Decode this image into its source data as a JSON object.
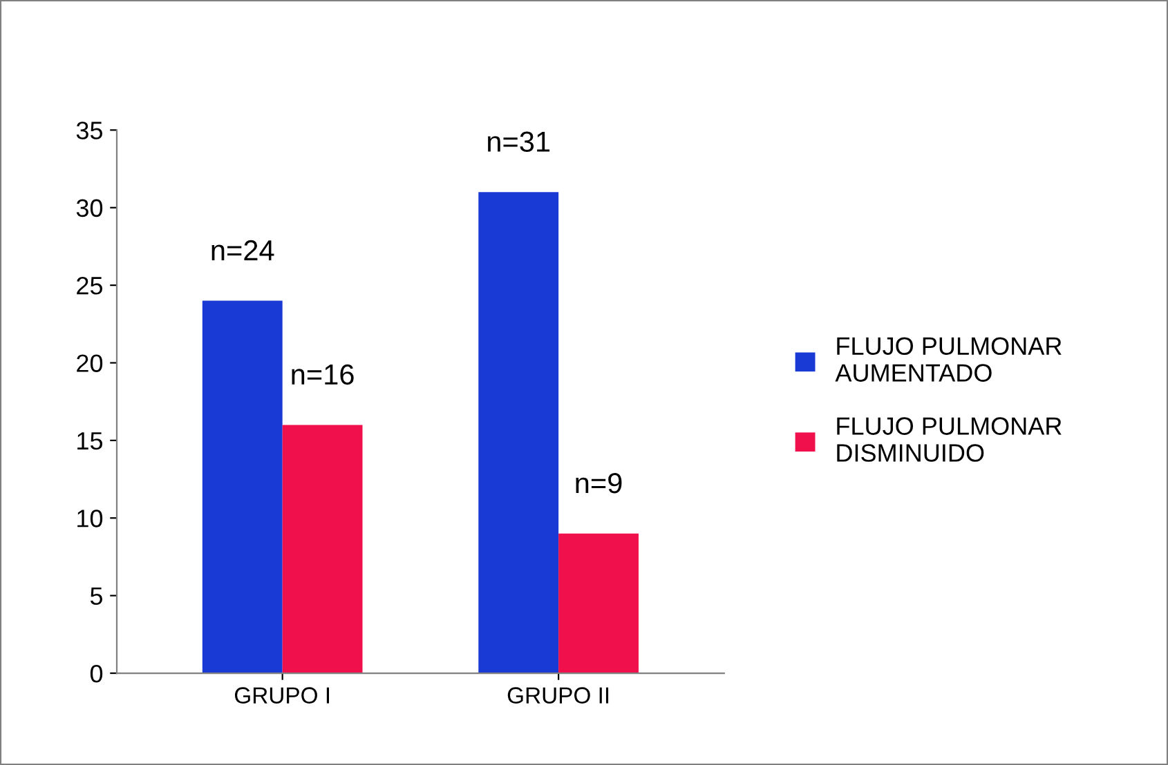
{
  "chart_data": {
    "type": "bar",
    "categories": [
      "GRUPO I",
      "GRUPO II"
    ],
    "series": [
      {
        "name": "FLUJO PULMONAR\nAUMENTADO",
        "color": "#1a3ad6",
        "values": [
          24,
          31
        ],
        "value_labels": [
          "n=24",
          "n=31"
        ]
      },
      {
        "name": "FLUJO PULMONAR\nDISMINUIDO",
        "color": "#f0104c",
        "values": [
          16,
          9
        ],
        "value_labels": [
          "n=16",
          "n=9"
        ]
      }
    ],
    "ylim": [
      0,
      35
    ],
    "yticks": [
      0,
      5,
      10,
      15,
      20,
      25,
      30,
      35
    ],
    "grid": false,
    "legend": "right"
  }
}
